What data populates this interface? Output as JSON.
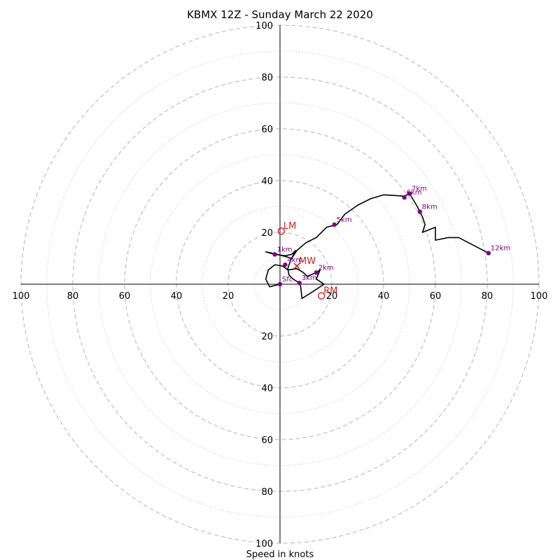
{
  "chart_data": {
    "type": "scatter",
    "subtype": "hodograph",
    "title": "KBMX 12Z - Sunday March 22 2020",
    "xlabel": "Speed in knots",
    "ring_max": 100,
    "ring_major": [
      20,
      40,
      60,
      80,
      100
    ],
    "ring_minor": [
      10,
      30,
      50,
      70,
      90
    ],
    "tick_labels": {
      "top": [
        "20",
        "40",
        "60",
        "80",
        "100"
      ],
      "bottom": [
        "20",
        "40",
        "60",
        "80",
        "100"
      ],
      "left": [
        "20",
        "40",
        "60",
        "80",
        "100"
      ],
      "right": [
        "20",
        "40",
        "60",
        "80",
        "100"
      ]
    },
    "grid": true,
    "trace_uv": [
      [
        0,
        0
      ],
      [
        -4,
        -1
      ],
      [
        -5.5,
        2
      ],
      [
        -4.5,
        5.5
      ],
      [
        -2,
        7.5
      ],
      [
        1,
        7
      ],
      [
        3,
        5.5
      ],
      [
        6.5,
        6
      ],
      [
        9,
        4.5
      ],
      [
        10.5,
        3
      ],
      [
        14,
        4.5
      ],
      [
        15.5,
        5.5
      ],
      [
        14,
        2
      ],
      [
        17,
        0
      ],
      [
        12.5,
        -3
      ],
      [
        8.5,
        -5.5
      ],
      [
        8,
        -1
      ],
      [
        7.5,
        0.5
      ],
      [
        5,
        2
      ],
      [
        3.5,
        3.5
      ],
      [
        3,
        6
      ],
      [
        4,
        9
      ],
      [
        6,
        13
      ],
      [
        4.5,
        11.5
      ],
      [
        2,
        11
      ],
      [
        -2,
        11.5
      ],
      [
        -5.5,
        12.5
      ],
      [
        -3,
        12
      ],
      [
        1,
        11
      ],
      [
        4.5,
        10
      ],
      [
        6.5,
        13
      ],
      [
        10,
        16
      ],
      [
        14,
        18
      ],
      [
        18,
        22
      ],
      [
        22,
        23
      ],
      [
        25,
        27
      ],
      [
        30,
        30.5
      ],
      [
        35,
        33
      ],
      [
        40,
        34.5
      ],
      [
        48,
        34
      ],
      [
        50,
        35
      ],
      [
        53,
        30
      ],
      [
        54,
        28
      ],
      [
        55,
        26
      ],
      [
        56,
        23
      ],
      [
        55,
        20
      ],
      [
        60,
        22
      ],
      [
        60,
        17
      ],
      [
        65,
        18
      ],
      [
        69,
        18
      ],
      [
        80.5,
        12
      ]
    ],
    "points": [
      {
        "label": "Sfc",
        "u": 0,
        "v": 0
      },
      {
        "label": "1km",
        "u": -2,
        "v": 11.5
      },
      {
        "label": "2km",
        "u": 14,
        "v": 4.5
      },
      {
        "label": "3km",
        "u": 7.5,
        "v": 0.5
      },
      {
        "label": "4km",
        "u": 2,
        "v": 7.5
      },
      {
        "label": "5km",
        "u": 21,
        "v": 23
      },
      {
        "label": "6km",
        "u": 48,
        "v": 33.5
      },
      {
        "label": "7km",
        "u": 50,
        "v": 35
      },
      {
        "label": "8km",
        "u": 54,
        "v": 28
      },
      {
        "label": "12km",
        "u": 80.5,
        "v": 12
      }
    ],
    "markers": [
      {
        "label": "LM",
        "u": 0.5,
        "v": 20.5,
        "style": "open-circle"
      },
      {
        "label": "MW",
        "u": 6.5,
        "v": 7,
        "style": "x"
      },
      {
        "label": "RM",
        "u": 16,
        "v": -4.5,
        "style": "open-circle"
      }
    ],
    "colors": {
      "trace": "#000000",
      "points": "#800080",
      "markers": "#cc2222",
      "grid": "#c0c0c0"
    }
  }
}
